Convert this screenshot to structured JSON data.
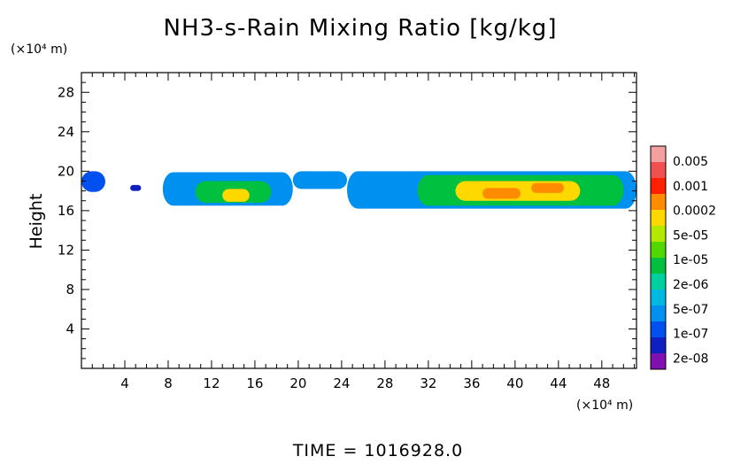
{
  "chart_data": {
    "type": "heatmap",
    "title": "NH3-s-Rain Mixing Ratio [kg/kg]",
    "ylabel": "Height",
    "xunit": "(×10⁴ m)",
    "yunit": "(×10⁴ m)",
    "time_label": "TIME  =  1016928.0",
    "xlim": [
      0,
      51.2
    ],
    "ylim": [
      0,
      30
    ],
    "xticks": [
      4,
      8,
      12,
      16,
      20,
      24,
      28,
      32,
      36,
      40,
      44,
      48
    ],
    "yticks": [
      4,
      8,
      12,
      16,
      20,
      24,
      28
    ],
    "colorbar": {
      "labels": [
        "0.005",
        "0.001",
        "0.0002",
        "5e-05",
        "1e-05",
        "2e-06",
        "5e-07",
        "1e-07",
        "2e-08"
      ],
      "colors": [
        "#f4a0a0",
        "#f05050",
        "#ff2000",
        "#ff8c00",
        "#ffd800",
        "#b4e800",
        "#50d800",
        "#00c040",
        "#00d0a0",
        "#00b8e0",
        "#0090f0",
        "#0050f0",
        "#1020c0",
        "#8010b0"
      ]
    },
    "regions": [
      {
        "x0": 0.0,
        "x1": 2.2,
        "y0": 17.9,
        "y1": 20.0,
        "level": 2
      },
      {
        "x0": 4.5,
        "x1": 5.5,
        "y0": 18.0,
        "y1": 18.6,
        "level": 1
      },
      {
        "x0": 7.5,
        "x1": 19.5,
        "y0": 16.5,
        "y1": 19.9,
        "level": 3
      },
      {
        "x0": 10.5,
        "x1": 17.5,
        "y0": 16.8,
        "y1": 19.0,
        "level": 6
      },
      {
        "x0": 13.0,
        "x1": 15.5,
        "y0": 16.9,
        "y1": 18.2,
        "level": 9
      },
      {
        "x0": 19.5,
        "x1": 24.5,
        "y0": 18.2,
        "y1": 20.0,
        "level": 3
      },
      {
        "x0": 24.5,
        "x1": 51.2,
        "y0": 16.2,
        "y1": 20.0,
        "level": 3
      },
      {
        "x0": 31.0,
        "x1": 50.0,
        "y0": 16.5,
        "y1": 19.6,
        "level": 6
      },
      {
        "x0": 34.5,
        "x1": 46.0,
        "y0": 17.0,
        "y1": 19.0,
        "level": 9
      },
      {
        "x0": 37.0,
        "x1": 40.5,
        "y0": 17.2,
        "y1": 18.3,
        "level": 10
      },
      {
        "x0": 41.5,
        "x1": 44.5,
        "y0": 17.8,
        "y1": 18.8,
        "level": 10
      }
    ]
  }
}
